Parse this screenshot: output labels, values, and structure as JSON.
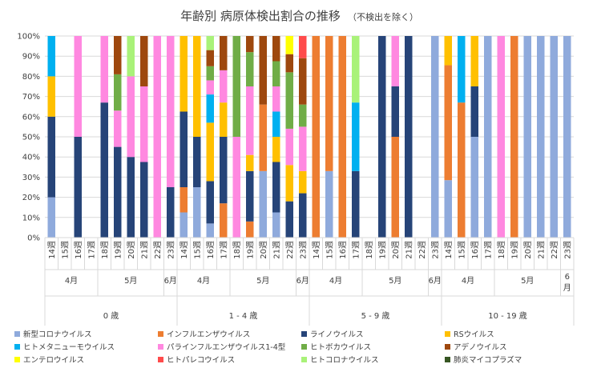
{
  "chart_data": {
    "type": "bar",
    "stacked": true,
    "percent": true,
    "title": "年齢別 病原体検出割合の推移",
    "subtitle": "（不検出を除く）",
    "yticks": [
      "0%",
      "10%",
      "20%",
      "30%",
      "40%",
      "50%",
      "60%",
      "70%",
      "80%",
      "90%",
      "100%"
    ],
    "ylim": [
      0,
      100
    ],
    "grid": true,
    "legend_position": "bottom",
    "series": [
      {
        "name": "新型コロナウイルス",
        "color": "#8FAADC"
      },
      {
        "name": "インフルエンザウイルス",
        "color": "#ED7D31"
      },
      {
        "name": "ライノウイルス",
        "color": "#264478"
      },
      {
        "name": "RSウイルス",
        "color": "#FFC000"
      },
      {
        "name": "ヒトメタニューモウイルス",
        "color": "#00B0F0"
      },
      {
        "name": "パラインフルエンザウイルス1-4型",
        "color": "#FF88E0"
      },
      {
        "name": "ヒトボカウイルス",
        "color": "#70AD47"
      },
      {
        "name": "アデノウイルス",
        "color": "#9E480E"
      },
      {
        "name": "エンテロウイルス",
        "color": "#FFFF00"
      },
      {
        "name": "ヒトパレコウイルス",
        "color": "#FF4B4B"
      },
      {
        "name": "ヒトコロナウイルス",
        "color": "#A9F279"
      },
      {
        "name": "肺炎マイコプラズマ",
        "color": "#375623"
      }
    ],
    "age_groups": [
      {
        "label": "0 歳",
        "months": [
          {
            "label": "4月",
            "span": 4
          },
          {
            "label": "5月",
            "span": 5
          },
          {
            "label": "6月",
            "span": 1
          }
        ]
      },
      {
        "label": "1 - 4 歳",
        "months": [
          {
            "label": "4月",
            "span": 4
          },
          {
            "label": "5月",
            "span": 5
          },
          {
            "label": "6月",
            "span": 1
          }
        ]
      },
      {
        "label": "5 - 9 歳",
        "months": [
          {
            "label": "4月",
            "span": 4
          },
          {
            "label": "5月",
            "span": 5
          },
          {
            "label": "6月",
            "span": 1
          }
        ]
      },
      {
        "label": "10 - 19 歳",
        "months": [
          {
            "label": "4月",
            "span": 4
          },
          {
            "label": "5月",
            "span": 5
          },
          {
            "label": "6月",
            "span": 1
          }
        ]
      }
    ],
    "month_label_last_group_june": "6\n月",
    "categories": [
      "14週",
      "15週",
      "16週",
      "17週",
      "18週",
      "19週",
      "20週",
      "21週",
      "22週",
      "23週"
    ],
    "bars": [
      [
        [
          0,
          20
        ],
        [
          2,
          40
        ],
        [
          3,
          20
        ],
        [
          4,
          20
        ]
      ],
      [],
      [
        [
          2,
          50
        ],
        [
          5,
          50
        ]
      ],
      [],
      [
        [
          2,
          67
        ],
        [
          5,
          33
        ]
      ],
      [
        [
          2,
          45
        ],
        [
          5,
          18
        ],
        [
          6,
          18
        ],
        [
          7,
          19
        ]
      ],
      [
        [
          2,
          40
        ],
        [
          5,
          40
        ],
        [
          10,
          20
        ]
      ],
      [
        [
          2,
          37.5
        ],
        [
          5,
          37.5
        ],
        [
          7,
          25
        ]
      ],
      [
        [
          5,
          100
        ]
      ],
      [
        [
          2,
          25
        ],
        [
          5,
          75
        ]
      ],
      [
        [
          0,
          12.5
        ],
        [
          1,
          12.5
        ],
        [
          2,
          37.5
        ],
        [
          3,
          37.5
        ]
      ],
      [
        [
          0,
          25
        ],
        [
          2,
          25
        ],
        [
          3,
          50
        ]
      ],
      [
        [
          0,
          7
        ],
        [
          2,
          21
        ],
        [
          3,
          29
        ],
        [
          4,
          14
        ],
        [
          5,
          7
        ],
        [
          6,
          7
        ],
        [
          7,
          8
        ],
        [
          10,
          7
        ]
      ],
      [
        [
          1,
          17
        ],
        [
          2,
          33
        ],
        [
          3,
          17
        ],
        [
          5,
          16
        ],
        [
          7,
          17
        ]
      ],
      [
        [
          5,
          50
        ],
        [
          6,
          50
        ]
      ],
      [
        [
          1,
          8
        ],
        [
          2,
          25
        ],
        [
          3,
          8
        ],
        [
          5,
          34
        ],
        [
          6,
          17
        ],
        [
          7,
          8
        ]
      ],
      [
        [
          0,
          33
        ],
        [
          1,
          33
        ],
        [
          7,
          34
        ]
      ],
      [
        [
          0,
          12.5
        ],
        [
          2,
          25
        ],
        [
          3,
          12.5
        ],
        [
          4,
          12.5
        ],
        [
          5,
          12.5
        ],
        [
          6,
          12.5
        ],
        [
          7,
          12.5
        ]
      ],
      [
        [
          2,
          18
        ],
        [
          3,
          18
        ],
        [
          5,
          18
        ],
        [
          6,
          28
        ],
        [
          7,
          9
        ],
        [
          8,
          9
        ]
      ],
      [
        [
          2,
          22
        ],
        [
          3,
          11
        ],
        [
          5,
          22
        ],
        [
          6,
          11
        ],
        [
          7,
          23
        ],
        [
          9,
          11
        ]
      ],
      [
        [
          1,
          100
        ]
      ],
      [
        [
          0,
          33
        ],
        [
          1,
          67
        ]
      ],
      [
        [
          1,
          100
        ]
      ],
      [
        [
          2,
          33
        ],
        [
          4,
          34
        ],
        [
          10,
          33
        ]
      ],
      [],
      [
        [
          2,
          100
        ]
      ],
      [
        [
          1,
          50
        ],
        [
          2,
          25
        ],
        [
          5,
          25
        ]
      ],
      [
        [
          2,
          100
        ]
      ],
      [],
      [
        [
          0,
          100
        ]
      ],
      [
        [
          0,
          28.5
        ],
        [
          1,
          57
        ],
        [
          3,
          14.5
        ]
      ],
      [
        [
          1,
          67
        ],
        [
          4,
          33
        ]
      ],
      [
        [
          0,
          50
        ],
        [
          2,
          25
        ],
        [
          3,
          25
        ]
      ],
      [
        [
          0,
          100
        ]
      ],
      [
        [
          5,
          100
        ]
      ],
      [
        [
          1,
          100
        ]
      ],
      [
        [
          0,
          100
        ]
      ],
      [
        [
          0,
          100
        ]
      ],
      [
        [
          0,
          100
        ]
      ],
      [
        [
          0,
          100
        ]
      ]
    ]
  }
}
